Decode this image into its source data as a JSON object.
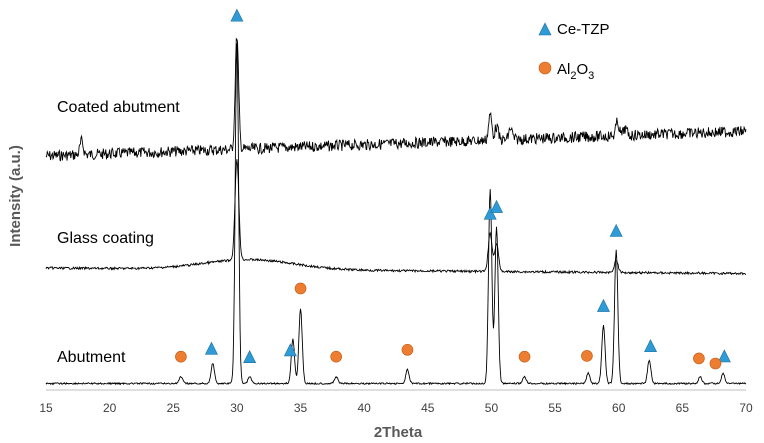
{
  "chart_data": {
    "type": "line",
    "xlabel": "2Theta",
    "ylabel": "Intensity (a.u.)",
    "xlim": [
      15,
      70
    ],
    "xticks": [
      "15",
      "20",
      "25",
      "30",
      "35",
      "40",
      "45",
      "50",
      "55",
      "60",
      "65",
      "70"
    ],
    "grid": false,
    "legend": {
      "placement": "top-right"
    },
    "markers": [
      {
        "name": "Ce-TZP",
        "symbol": "triangle",
        "color": "#2e9bd6"
      },
      {
        "name_main": "Al",
        "name_sub": "2",
        "name_main2": "O",
        "name_sub2": "3",
        "symbol": "circle",
        "color": "#ed7d31"
      }
    ],
    "series": [
      {
        "name": "Coated abutment",
        "peaks": [
          {
            "x": 30.0,
            "y": 100
          },
          {
            "x": 17.8,
            "y": 12
          },
          {
            "x": 49.9,
            "y": 22
          },
          {
            "x": 50.4,
            "y": 12
          },
          {
            "x": 51.5,
            "y": 10
          },
          {
            "x": 59.9,
            "y": 12
          },
          {
            "x": 60.5,
            "y": 6
          }
        ]
      },
      {
        "name": "Glass coating",
        "peaks": [
          {
            "x": 30.0,
            "y": 100
          },
          {
            "x": 49.9,
            "y": 38
          },
          {
            "x": 50.4,
            "y": 28
          },
          {
            "x": 59.8,
            "y": 12
          }
        ]
      },
      {
        "name": "Abutment",
        "peaks": [
          {
            "x": 25.6,
            "y": 2
          },
          {
            "x": 28.1,
            "y": 6
          },
          {
            "x": 30.0,
            "y": 100
          },
          {
            "x": 31.0,
            "y": 2
          },
          {
            "x": 34.4,
            "y": 13
          },
          {
            "x": 35.0,
            "y": 22
          },
          {
            "x": 37.8,
            "y": 2
          },
          {
            "x": 43.4,
            "y": 4
          },
          {
            "x": 49.9,
            "y": 57
          },
          {
            "x": 50.4,
            "y": 46
          },
          {
            "x": 52.6,
            "y": 2
          },
          {
            "x": 57.6,
            "y": 3
          },
          {
            "x": 58.8,
            "y": 17
          },
          {
            "x": 59.8,
            "y": 39
          },
          {
            "x": 62.4,
            "y": 7
          },
          {
            "x": 66.4,
            "y": 2
          },
          {
            "x": 68.2,
            "y": 3
          }
        ]
      }
    ],
    "phase_marks": [
      {
        "x": 30.0,
        "phase": "Ce-TZP",
        "series": "Coated abutment"
      },
      {
        "x": 28.0,
        "phase": "Ce-TZP",
        "series": "Abutment"
      },
      {
        "x": 31.0,
        "phase": "Ce-TZP",
        "series": "Abutment"
      },
      {
        "x": 34.2,
        "phase": "Ce-TZP",
        "series": "Abutment"
      },
      {
        "x": 49.9,
        "phase": "Ce-TZP",
        "series": "Glass coating"
      },
      {
        "x": 50.4,
        "phase": "Ce-TZP",
        "series": "Abutment"
      },
      {
        "x": 58.8,
        "phase": "Ce-TZP",
        "series": "Abutment"
      },
      {
        "x": 59.8,
        "phase": "Ce-TZP",
        "series": "Abutment"
      },
      {
        "x": 62.5,
        "phase": "Ce-TZP",
        "series": "Abutment"
      },
      {
        "x": 68.3,
        "phase": "Ce-TZP",
        "series": "Abutment"
      },
      {
        "x": 25.6,
        "phase": "Al2O3",
        "series": "Abutment"
      },
      {
        "x": 35.0,
        "phase": "Al2O3",
        "series": "Abutment"
      },
      {
        "x": 37.8,
        "phase": "Al2O3",
        "series": "Abutment"
      },
      {
        "x": 43.4,
        "phase": "Al2O3",
        "series": "Abutment"
      },
      {
        "x": 52.6,
        "phase": "Al2O3",
        "series": "Abutment"
      },
      {
        "x": 57.5,
        "phase": "Al2O3",
        "series": "Abutment"
      },
      {
        "x": 66.3,
        "phase": "Al2O3",
        "series": "Abutment"
      },
      {
        "x": 67.6,
        "phase": "Al2O3",
        "series": "Abutment"
      }
    ]
  }
}
